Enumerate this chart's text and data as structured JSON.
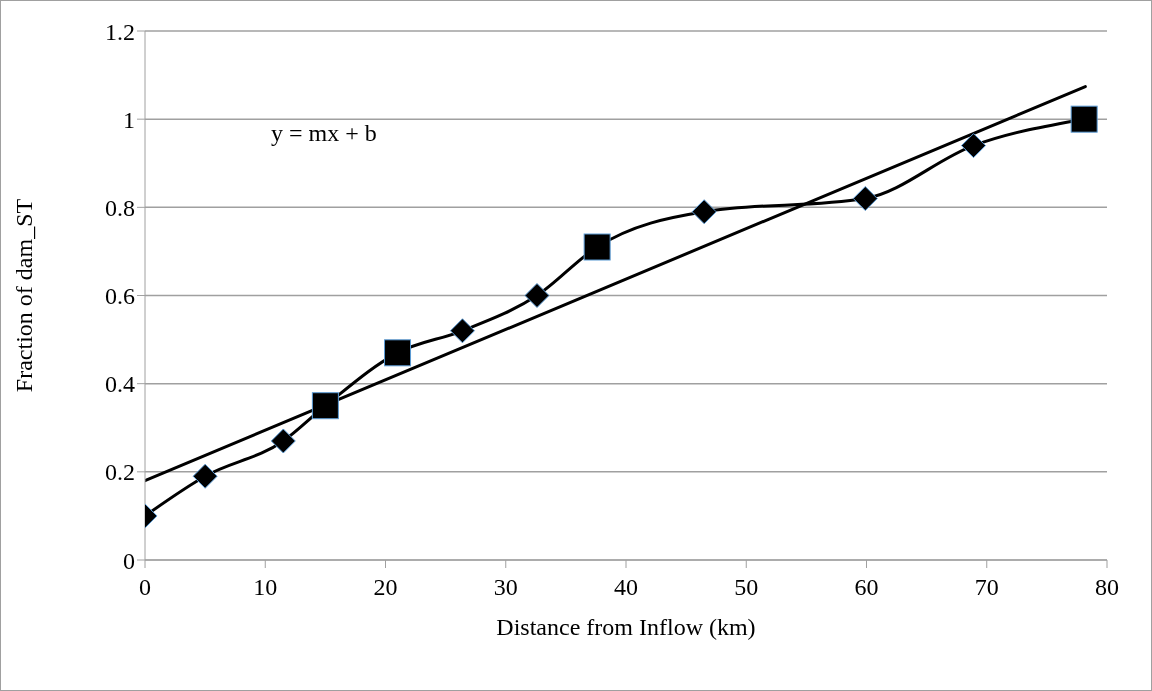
{
  "chart_data": {
    "type": "line",
    "xlabel": "Distance from Inflow (km)",
    "ylabel": "Fraction of dam_ST",
    "annotations": [
      "y = mx + b"
    ],
    "xlim": [
      0,
      80
    ],
    "xticks": [
      0,
      10,
      20,
      30,
      40,
      50,
      60,
      70,
      80
    ],
    "ylim": [
      0,
      1.2
    ],
    "yticks": [
      0,
      0.2,
      0.4,
      0.6,
      0.8,
      1,
      1.2
    ],
    "grid": "y",
    "series": [
      {
        "type": "line",
        "marker": "none",
        "color": "#000000",
        "x": [
          0,
          5,
          11.5,
          15,
          21,
          26.4,
          32.6,
          37.6,
          46.5,
          59.9,
          68.9,
          78.1
        ],
        "values": [
          0.1,
          0.19,
          0.27,
          0.35,
          0.47,
          0.52,
          0.6,
          0.71,
          0.79,
          0.82,
          0.94,
          1.0
        ]
      },
      {
        "type": "scatter",
        "marker": "diamond",
        "color": "#000000",
        "x": [
          0,
          5,
          11.5,
          26.4,
          32.6,
          46.5,
          59.9,
          68.9
        ],
        "values": [
          0.1,
          0.19,
          0.27,
          0.52,
          0.6,
          0.79,
          0.82,
          0.94
        ]
      },
      {
        "type": "scatter",
        "marker": "square",
        "color": "#000000",
        "x": [
          15,
          21,
          37.6,
          78.1
        ],
        "values": [
          0.35,
          0.47,
          0.71,
          1.0
        ]
      },
      {
        "type": "line",
        "marker": "none",
        "color": "#000000",
        "x": [
          0,
          78.2
        ],
        "values": [
          0.18,
          1.074
        ]
      }
    ]
  }
}
